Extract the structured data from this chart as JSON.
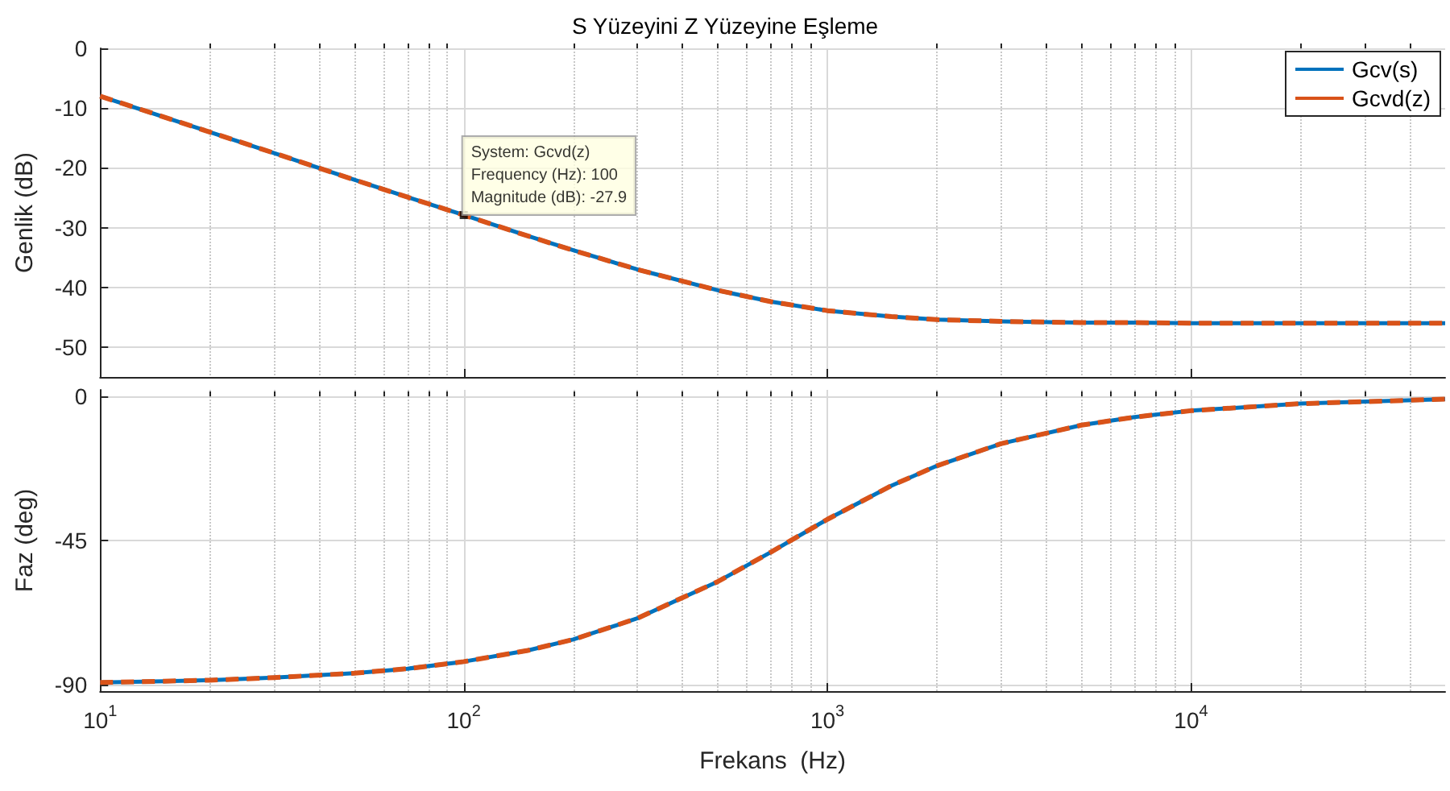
{
  "chart_data": [
    {
      "type": "line",
      "title": "S Yüzeyini Z Yüzeyine Eşleme",
      "ylabel": "Genlik (dB)",
      "log": "x",
      "xlim": [
        10,
        50000
      ],
      "xticks": [
        {
          "value": 10,
          "label": null
        },
        {
          "value": 100,
          "label": null
        },
        {
          "value": 1000,
          "label": null
        },
        {
          "value": 10000,
          "label": null
        }
      ],
      "ylim": [
        -55,
        0
      ],
      "yticks": [
        0,
        -10,
        -20,
        -30,
        -40,
        -50
      ],
      "tick_labels": "y",
      "grid": true,
      "legend": "top right",
      "marker": "none",
      "x": [
        10,
        15,
        20,
        30,
        50,
        70,
        100,
        150,
        200,
        300,
        500,
        700,
        1000,
        1500,
        2000,
        3000,
        5000,
        7000,
        10000,
        20000,
        50000
      ],
      "annotations": [
        {
          "text": "System: Gcvd(z)\nFrequency (Hz): 100\nMagnitude (dB): -27.9",
          "x": 100,
          "y": -27.9
        }
      ],
      "series": [
        {
          "name": "Gcv(s)",
          "color": "#0072bd",
          "line_style": "solid",
          "values": [
            -8.0,
            -11.5,
            -14.0,
            -17.5,
            -22.0,
            -24.9,
            -27.9,
            -31.4,
            -33.8,
            -37.0,
            -40.5,
            -42.4,
            -43.9,
            -44.9,
            -45.4,
            -45.7,
            -45.9,
            -45.9,
            -46.0,
            -46.0,
            -46.0
          ]
        },
        {
          "name": "Gcvd(z)",
          "color": "#d95319",
          "line_style": "dashed",
          "values": [
            -8.0,
            -11.5,
            -14.0,
            -17.5,
            -22.0,
            -24.9,
            -27.9,
            -31.4,
            -33.8,
            -37.0,
            -40.5,
            -42.4,
            -43.9,
            -44.9,
            -45.4,
            -45.7,
            -45.9,
            -45.9,
            -46.0,
            -46.0,
            -46.0
          ]
        }
      ]
    },
    {
      "type": "line",
      "xlabel": "Frekans  (Hz)",
      "ylabel": "Faz (deg)",
      "log": "x",
      "xlim": [
        10,
        50000
      ],
      "xticks": [
        {
          "value": 10,
          "label": "10$^{1}$"
        },
        {
          "value": 100,
          "label": "10$^{2}$"
        },
        {
          "value": 1000,
          "label": "10$^{3}$"
        },
        {
          "value": 10000,
          "label": "10$^{4}$"
        }
      ],
      "ylim": [
        -92,
        2
      ],
      "yticks": [
        0,
        -45,
        -90
      ],
      "grid": true,
      "marker": "none",
      "x": [
        10,
        15,
        20,
        30,
        50,
        70,
        100,
        150,
        200,
        300,
        500,
        700,
        1000,
        1500,
        2000,
        3000,
        5000,
        7000,
        10000,
        20000,
        50000
      ],
      "series": [
        {
          "color": "#0072bd",
          "line_style": "solid",
          "values": [
            -89.3,
            -88.9,
            -88.6,
            -87.8,
            -86.4,
            -85.0,
            -82.8,
            -79.3,
            -75.9,
            -69.3,
            -57.8,
            -48.6,
            -38.4,
            -27.9,
            -21.7,
            -14.8,
            -9.0,
            -6.5,
            -4.5,
            -2.3,
            -0.9
          ]
        },
        {
          "color": "#d95319",
          "line_style": "dashed",
          "values": [
            -89.3,
            -88.9,
            -88.6,
            -87.8,
            -86.4,
            -85.0,
            -82.8,
            -79.3,
            -75.9,
            -69.3,
            -57.8,
            -48.6,
            -38.4,
            -27.9,
            -21.7,
            -14.8,
            -9.0,
            -6.5,
            -4.5,
            -2.3,
            -0.9
          ]
        }
      ]
    }
  ]
}
